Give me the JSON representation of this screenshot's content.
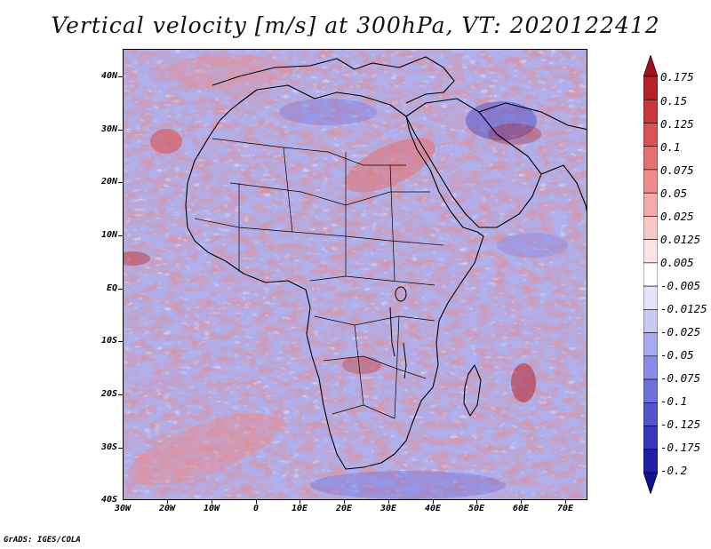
{
  "title": "Vertical velocity [m/s] at 300hPa, VT: 2020122412",
  "footer": "GrADS: IGES/COLA",
  "colors": {
    "positive_light": "#f4b4b4",
    "positive_dark": "#a81020",
    "negative_light": "#b8b8f0",
    "negative_dark": "#2a1890",
    "coast": "#000000"
  },
  "y_axis": {
    "ticks": [
      "40N",
      "30N",
      "20N",
      "10N",
      "EQ",
      "10S",
      "20S",
      "30S",
      "40S"
    ],
    "values": [
      40,
      30,
      20,
      10,
      0,
      -10,
      -20,
      -30,
      -40
    ],
    "range": [
      -40,
      45
    ]
  },
  "x_axis": {
    "ticks": [
      "30W",
      "20W",
      "10W",
      "0",
      "10E",
      "20E",
      "30E",
      "40E",
      "50E",
      "60E",
      "70E"
    ],
    "values": [
      -30,
      -20,
      -10,
      0,
      10,
      20,
      30,
      40,
      50,
      60,
      70
    ],
    "range": [
      -30,
      75
    ]
  },
  "colorbar": {
    "labels": [
      "0.175",
      "0.15",
      "0.125",
      "0.1",
      "0.075",
      "0.05",
      "0.025",
      "0.0125",
      "0.005",
      "-0.005",
      "-0.0125",
      "-0.025",
      "-0.05",
      "-0.075",
      "-0.1",
      "-0.125",
      "-0.175",
      "-0.2"
    ],
    "colors": [
      "#a0101c",
      "#b82028",
      "#c83838",
      "#d85454",
      "#e47070",
      "#ec8c8c",
      "#f2aaaa",
      "#f8c8c8",
      "#fce4e4",
      "#ffffff",
      "#e4e4fa",
      "#c8c8f4",
      "#aaaaee",
      "#8c8ce6",
      "#7070dc",
      "#5454cc",
      "#3838bc",
      "#2020a8",
      "#101090"
    ]
  }
}
